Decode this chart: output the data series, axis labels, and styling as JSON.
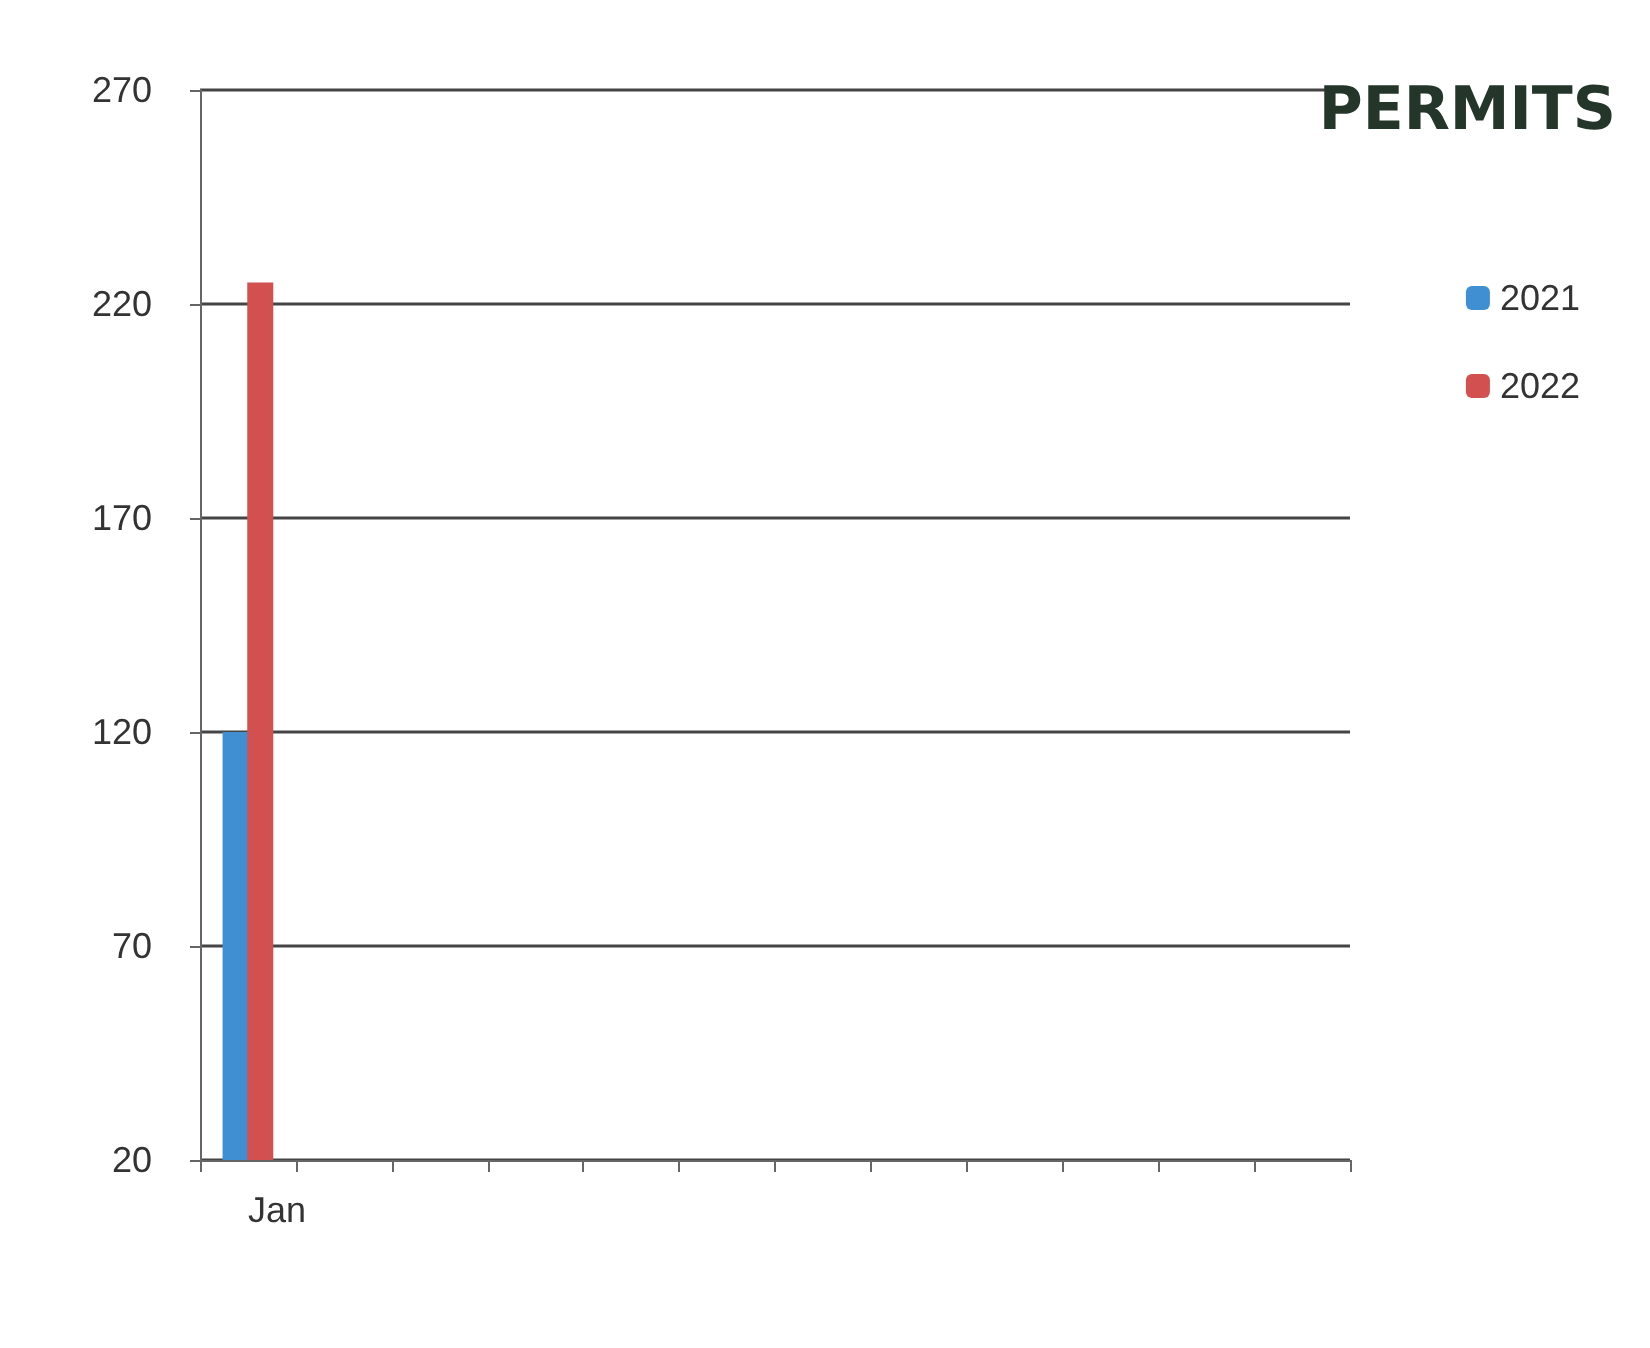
{
  "chart_data": {
    "type": "bar",
    "title": "PERMITS",
    "categories": [
      "Jan",
      null,
      null,
      null,
      null,
      null,
      null,
      null,
      null,
      null,
      null,
      null
    ],
    "series": [
      {
        "name": "2021",
        "color": "#3f8fd2",
        "values": [
          120,
          null,
          null,
          null,
          null,
          null,
          null,
          null,
          null,
          null,
          null,
          null
        ]
      },
      {
        "name": "2022",
        "color": "#d2504f",
        "values": [
          225,
          null,
          null,
          null,
          null,
          null,
          null,
          null,
          null,
          null,
          null,
          null
        ]
      }
    ],
    "ylim": [
      20,
      270
    ],
    "yticks": [
      20,
      70,
      120,
      170,
      220,
      270
    ],
    "grid": "y",
    "legend": "right"
  }
}
